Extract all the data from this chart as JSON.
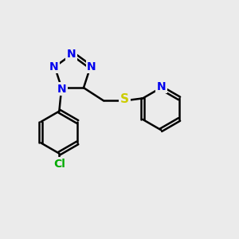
{
  "background_color": "#ebebeb",
  "bond_color": "#000000",
  "bond_width": 1.8,
  "atom_colors": {
    "N": "#0000ee",
    "S": "#cccc00",
    "Cl": "#00aa00",
    "C": "#000000"
  },
  "font_size_atom": 10,
  "figsize": [
    3.0,
    3.0
  ],
  "dpi": 100
}
